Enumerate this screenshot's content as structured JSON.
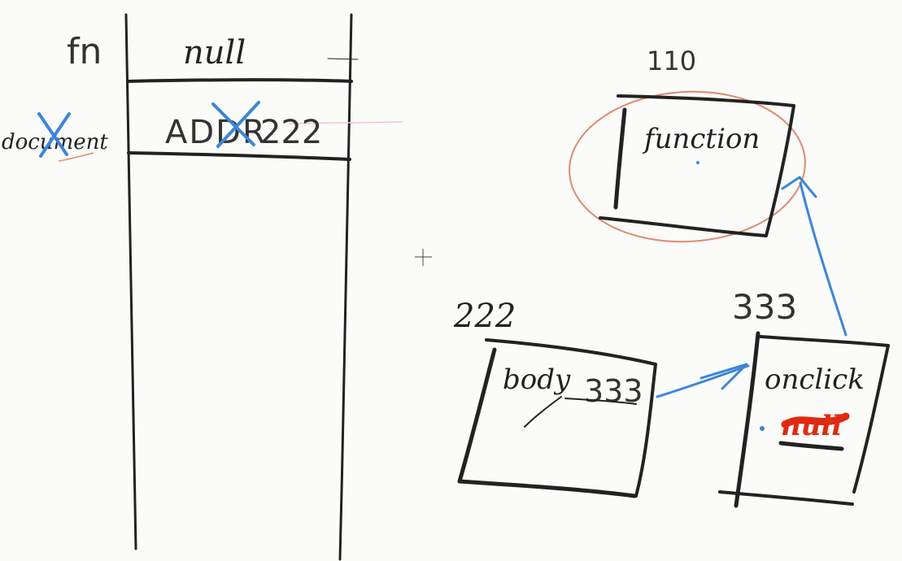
{
  "stack": {
    "row_fn": {
      "name": "fn",
      "value": "null"
    },
    "row_document": {
      "name": "document",
      "value_struck": "ADDR",
      "value": "222"
    }
  },
  "heap": {
    "addr_function": "110",
    "function_box": {
      "text": "function"
    },
    "addr_body": "222",
    "body_box": {
      "text": "body",
      "ref": "333"
    },
    "addr_onclick": "333",
    "onclick_box": {
      "text": "onclick",
      "struck_value": "null"
    }
  },
  "colors": {
    "ink": "#222222",
    "arrow_blue": "#3b86d8",
    "circle_orange": "#e08a70",
    "scribble_red": "#e02a10",
    "background": "#fbfbf9"
  },
  "icons": {
    "cursor": "crosshair-cursor-icon"
  }
}
